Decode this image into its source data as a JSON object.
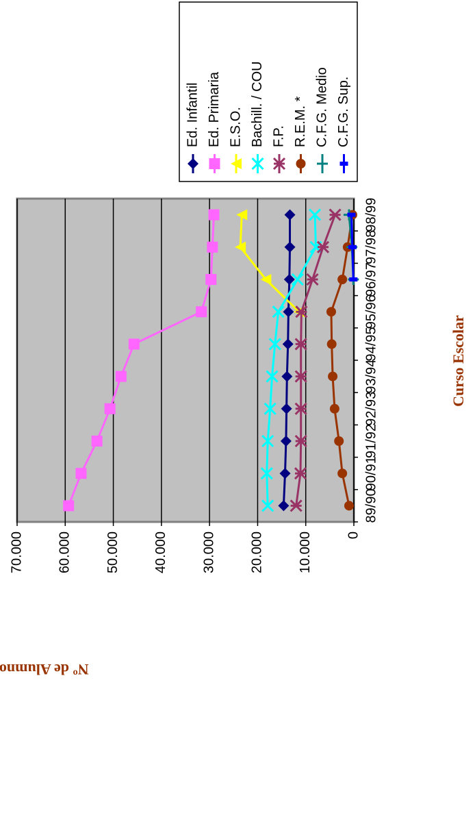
{
  "chart_data": {
    "type": "line",
    "x_label": "Curso Escolar",
    "y_label": "Nº de Alumnos",
    "categories": [
      "89/90",
      "90/91",
      "91/92",
      "92/93",
      "93/94",
      "94/95",
      "95/96",
      "96/97",
      "97/98",
      "98/99"
    ],
    "ylim": [
      0,
      70000
    ],
    "yticks": [
      {
        "value": 0,
        "label": "0"
      },
      {
        "value": 10000,
        "label": "10.000"
      },
      {
        "value": 20000,
        "label": "20.000"
      },
      {
        "value": 30000,
        "label": "30.000"
      },
      {
        "value": 40000,
        "label": "40.000"
      },
      {
        "value": 50000,
        "label": "50.000"
      },
      {
        "value": 60000,
        "label": "60.000"
      },
      {
        "value": 70000,
        "label": "70.000"
      }
    ],
    "grid": true,
    "series": [
      {
        "name": "Ed. Infantil",
        "color": "#000080",
        "marker": "diamond",
        "values": [
          14600,
          14300,
          14100,
          14000,
          13900,
          13700,
          13600,
          13400,
          13300,
          13300
        ]
      },
      {
        "name": "Ed. Primaria",
        "color": "#ff66ff",
        "marker": "square",
        "values": [
          59300,
          56700,
          53400,
          50700,
          48400,
          45700,
          31700,
          29700,
          29400,
          29100
        ]
      },
      {
        "name": "E.S.O.",
        "color": "#ffff00",
        "marker": "triangle",
        "values": [
          null,
          null,
          null,
          null,
          null,
          null,
          11400,
          18300,
          23600,
          23300
        ]
      },
      {
        "name": "Bachill. / COU",
        "color": "#00ffff",
        "marker": "x",
        "values": [
          17900,
          18100,
          17900,
          17400,
          17000,
          16400,
          15700,
          11700,
          7900,
          8100
        ]
      },
      {
        "name": "F.P.",
        "color": "#993366",
        "marker": "star",
        "values": [
          12000,
          11100,
          11000,
          11000,
          11000,
          11000,
          10900,
          8600,
          6400,
          3900
        ]
      },
      {
        "name": "R.E.M. *",
        "color": "#993300",
        "marker": "circle",
        "values": [
          1000,
          2400,
          3100,
          4000,
          4400,
          4600,
          4700,
          2400,
          1300,
          300
        ]
      },
      {
        "name": "C.F.G. Medio",
        "color": "#008080",
        "marker": "plus",
        "values": [
          null,
          null,
          null,
          null,
          null,
          null,
          null,
          100,
          400,
          1000
        ]
      },
      {
        "name": "C.F.G. Sup.",
        "color": "#0000ff",
        "marker": "bar",
        "values": [
          null,
          null,
          null,
          null,
          null,
          null,
          null,
          100,
          300,
          500
        ]
      }
    ]
  }
}
